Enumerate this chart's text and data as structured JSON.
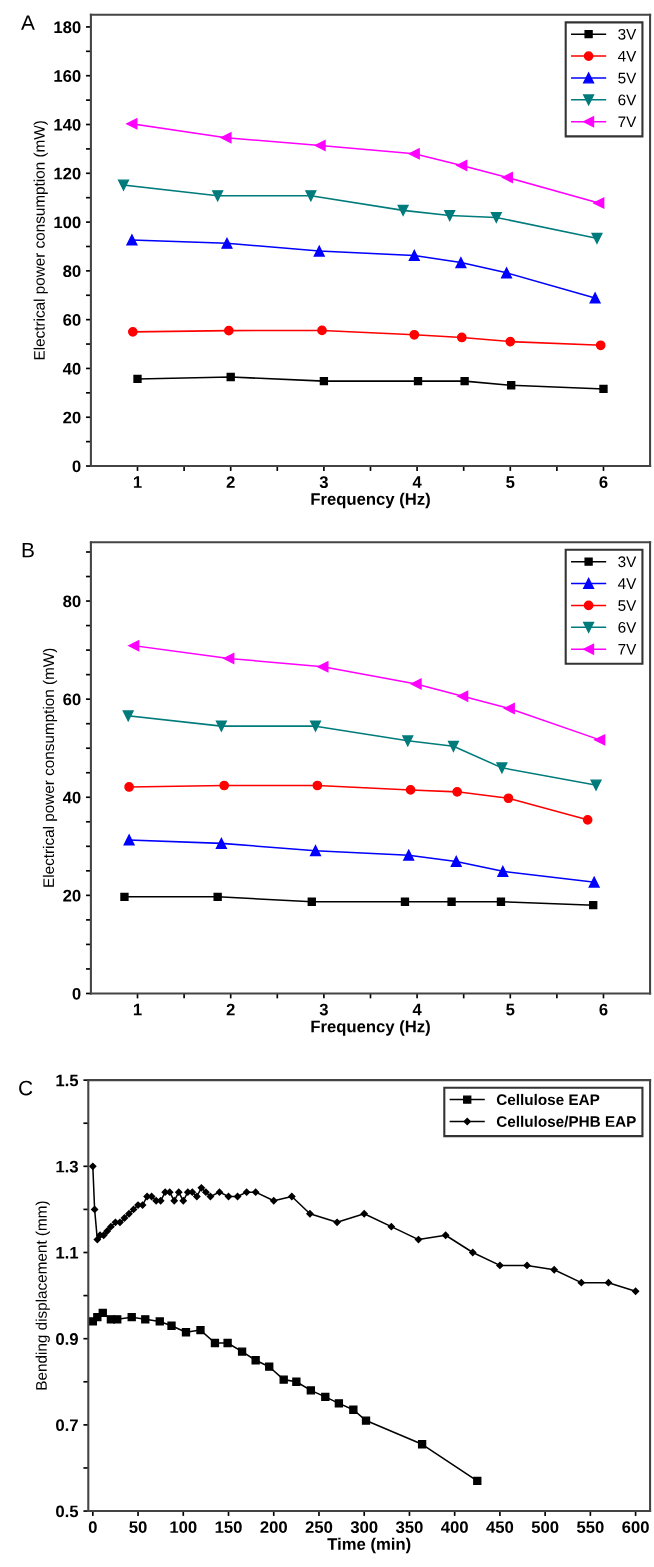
{
  "chart_data": [
    {
      "type": "line",
      "annotations": [
        "A"
      ],
      "xlabel": "Frequency (Hz)",
      "ylabel": "Electrical power consumption (mW)",
      "xlim": [
        0.5,
        6.5
      ],
      "ylim": [
        0,
        185
      ],
      "xticks": [
        1,
        {
          "value": 1.5,
          "label": null
        },
        2,
        {
          "value": 2.5,
          "label": null
        },
        3,
        {
          "value": 3.5,
          "label": null
        },
        4,
        {
          "value": 4.5,
          "label": null
        },
        5,
        {
          "value": 5.5,
          "label": null
        },
        6
      ],
      "yticks": [
        0,
        {
          "value": 10,
          "label": null
        },
        20,
        {
          "value": 30,
          "label": null
        },
        40,
        {
          "value": 50,
          "label": null
        },
        60,
        {
          "value": 70,
          "label": null
        },
        80,
        {
          "value": 90,
          "label": null
        },
        100,
        {
          "value": 110,
          "label": null
        },
        120,
        {
          "value": 130,
          "label": null
        },
        140,
        {
          "value": 150,
          "label": null
        },
        160,
        {
          "value": 170,
          "label": null
        },
        180
      ],
      "legend": "top right",
      "grid": false,
      "line_style": "solid",
      "series": [
        {
          "name": "3V",
          "color": "#000000",
          "marker": "square",
          "x": [
            1.0,
            2.0,
            3.0,
            4.01,
            4.51,
            5.01,
            6.0
          ],
          "values": [
            35.7,
            36.5,
            34.8,
            34.8,
            34.8,
            33.1,
            31.6
          ]
        },
        {
          "name": "4V",
          "color": "#ff0000",
          "marker": "circle",
          "x": [
            0.95,
            1.98,
            2.98,
            3.97,
            4.48,
            5.0,
            5.97
          ],
          "values": [
            55,
            55.5,
            55.6,
            53.8,
            52.7,
            51,
            49.5
          ]
        },
        {
          "name": "5V",
          "color": "#0000ff",
          "marker": "triangle",
          "x": [
            0.94,
            1.96,
            2.95,
            3.97,
            4.47,
            4.96,
            5.91
          ],
          "values": [
            92.7,
            91.3,
            88.1,
            86.3,
            83.4,
            79.2,
            68.9
          ]
        },
        {
          "name": "6V",
          "color": "#007b7b",
          "marker": "triangle_down",
          "x": [
            0.85,
            1.86,
            2.86,
            3.85,
            4.35,
            4.85,
            5.93
          ],
          "values": [
            115.2,
            110.8,
            110.8,
            104.8,
            102.7,
            101.9,
            93.3
          ]
        },
        {
          "name": "7V",
          "color": "#ff00ff",
          "marker": "triangle_left",
          "x": [
            0.94,
            1.95,
            2.96,
            3.97,
            4.48,
            4.97,
            5.95
          ],
          "values": [
            140.3,
            134.6,
            131.4,
            128,
            123.2,
            118.3,
            107.8
          ]
        }
      ]
    },
    {
      "type": "line",
      "annotations": [
        "B"
      ],
      "xlabel": "Frequency (Hz)",
      "ylabel": "Electrical power consumption (mW)",
      "xlim": [
        0.5,
        6.5
      ],
      "ylim": [
        0,
        92
      ],
      "xticks": [
        1,
        {
          "value": 1.5,
          "label": null
        },
        2,
        {
          "value": 2.5,
          "label": null
        },
        3,
        {
          "value": 3.5,
          "label": null
        },
        4,
        {
          "value": 4.5,
          "label": null
        },
        5,
        {
          "value": 5.5,
          "label": null
        },
        6
      ],
      "yticks": [
        0,
        {
          "value": 5,
          "label": null
        },
        {
          "value": 10,
          "label": null
        },
        {
          "value": 15,
          "label": null
        },
        20,
        {
          "value": 25,
          "label": null
        },
        {
          "value": 30,
          "label": null
        },
        {
          "value": 35,
          "label": null
        },
        40,
        {
          "value": 45,
          "label": null
        },
        {
          "value": 50,
          "label": null
        },
        {
          "value": 55,
          "label": null
        },
        60,
        {
          "value": 65,
          "label": null
        },
        {
          "value": 70,
          "label": null
        },
        {
          "value": 75,
          "label": null
        },
        80,
        {
          "value": 85,
          "label": null
        },
        {
          "value": 90,
          "label": null
        }
      ],
      "legend": "top right",
      "grid": false,
      "line_style": "solid",
      "series": [
        {
          "name": "3V",
          "color": "#000000",
          "marker": "square",
          "x": [
            0.86,
            1.86,
            2.87,
            3.87,
            4.37,
            4.9,
            5.89
          ],
          "values": [
            19.7,
            19.7,
            18.7,
            18.7,
            18.7,
            18.7,
            18.0
          ]
        },
        {
          "name": "4V",
          "color": "#0000ff",
          "marker": "triangle",
          "x": [
            0.91,
            1.9,
            2.91,
            3.91,
            4.42,
            4.92,
            5.9
          ],
          "values": [
            31.3,
            30.6,
            29.1,
            28.2,
            26.9,
            24.9,
            22.7
          ]
        },
        {
          "name": "5V",
          "color": "#ff0000",
          "marker": "circle",
          "x": [
            0.91,
            1.93,
            2.93,
            3.93,
            4.43,
            4.98,
            5.83
          ],
          "values": [
            42.1,
            42.4,
            42.4,
            41.5,
            41.1,
            39.8,
            35.4
          ]
        },
        {
          "name": "6V",
          "color": "#007b7b",
          "marker": "triangle_down",
          "x": [
            0.9,
            1.9,
            2.91,
            3.9,
            4.39,
            4.91,
            5.92
          ],
          "values": [
            56.6,
            54.5,
            54.5,
            51.5,
            50.4,
            46.0,
            42.5
          ]
        },
        {
          "name": "7V",
          "color": "#ff00ff",
          "marker": "triangle_left",
          "x": [
            0.96,
            1.98,
            2.99,
            3.99,
            4.49,
            4.99,
            5.96
          ],
          "values": [
            70.9,
            68.3,
            66.6,
            63.1,
            60.6,
            58.1,
            51.7
          ]
        }
      ]
    },
    {
      "type": "line",
      "annotations": [
        "C"
      ],
      "xlabel": "Time (min)",
      "ylabel": "Bending displacement (mm)",
      "xlim": [
        -5,
        616
      ],
      "ylim": [
        0.5,
        1.5
      ],
      "xticks": [
        0,
        50,
        100,
        150,
        200,
        250,
        300,
        350,
        400,
        450,
        500,
        550,
        600
      ],
      "yticks": [
        0.5,
        {
          "value": 0.6,
          "label": null
        },
        0.7,
        {
          "value": 0.8,
          "label": null
        },
        0.9,
        {
          "value": 1.0,
          "label": null
        },
        1.1,
        {
          "value": 1.2,
          "label": null
        },
        1.3,
        {
          "value": 1.4,
          "label": null
        },
        1.5
      ],
      "legend": "top right",
      "grid": false,
      "line_style": "solid",
      "series": [
        {
          "name": "Cellulose EAP",
          "color": "#000000",
          "marker": "square",
          "x": [
            0,
            5,
            11,
            20,
            27,
            43,
            58,
            74,
            87,
            103,
            119,
            135,
            149,
            165,
            180,
            195,
            211,
            225,
            241,
            257,
            272,
            288,
            302,
            364,
            425
          ],
          "values": [
            0.94,
            0.95,
            0.96,
            0.945,
            0.945,
            0.95,
            0.945,
            0.94,
            0.93,
            0.915,
            0.92,
            0.89,
            0.89,
            0.87,
            0.85,
            0.835,
            0.805,
            0.8,
            0.78,
            0.765,
            0.75,
            0.735,
            0.71,
            0.655,
            0.57
          ]
        },
        {
          "name": "Cellulose/PHB EAP",
          "color": "#000000",
          "marker": "diamond",
          "x": [
            0,
            2,
            5,
            8,
            12,
            16,
            20,
            25,
            30,
            35,
            40,
            45,
            50,
            55,
            60,
            65,
            70,
            75,
            80,
            85,
            90,
            95,
            100,
            105,
            110,
            115,
            120,
            125,
            130,
            140,
            150,
            160,
            170,
            180,
            200,
            220,
            240,
            270,
            300,
            330,
            360,
            390,
            420,
            450,
            480,
            510,
            540,
            570,
            600
          ],
          "values": [
            1.3,
            1.2,
            1.13,
            1.14,
            1.14,
            1.15,
            1.16,
            1.17,
            1.17,
            1.18,
            1.19,
            1.2,
            1.21,
            1.21,
            1.23,
            1.23,
            1.22,
            1.22,
            1.24,
            1.24,
            1.22,
            1.24,
            1.22,
            1.24,
            1.24,
            1.23,
            1.25,
            1.24,
            1.23,
            1.24,
            1.23,
            1.23,
            1.24,
            1.24,
            1.22,
            1.23,
            1.19,
            1.17,
            1.19,
            1.16,
            1.13,
            1.14,
            1.1,
            1.07,
            1.07,
            1.06,
            1.03,
            1.03,
            1.01
          ]
        }
      ]
    }
  ]
}
